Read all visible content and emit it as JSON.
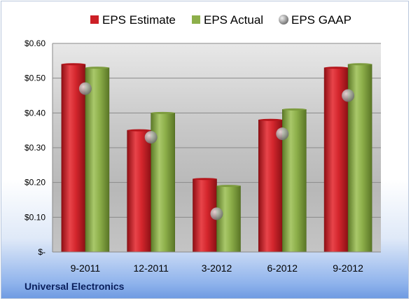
{
  "footer": {
    "company": "Universal Electronics"
  },
  "colors": {
    "estimate": "#cc1f26",
    "actual": "#8daf4a",
    "gaap": "#a9a9a9"
  },
  "chart_data": {
    "type": "bar",
    "categories": [
      "9-2011",
      "12-2011",
      "3-2012",
      "6-2012",
      "9-2012"
    ],
    "series": [
      {
        "name": "EPS Estimate",
        "type": "bar",
        "values": [
          0.54,
          0.35,
          0.21,
          0.38,
          0.53
        ]
      },
      {
        "name": "EPS Actual",
        "type": "bar",
        "values": [
          0.53,
          0.4,
          0.19,
          0.41,
          0.54
        ]
      },
      {
        "name": "EPS GAAP",
        "type": "scatter",
        "values": [
          0.47,
          0.33,
          0.11,
          0.34,
          0.45
        ]
      }
    ],
    "y_ticks": [
      "$-",
      "$0.10",
      "$0.20",
      "$0.30",
      "$0.40",
      "$0.50",
      "$0.60"
    ],
    "ylim": [
      0,
      0.6
    ],
    "grid": true,
    "legend_position": "top"
  }
}
